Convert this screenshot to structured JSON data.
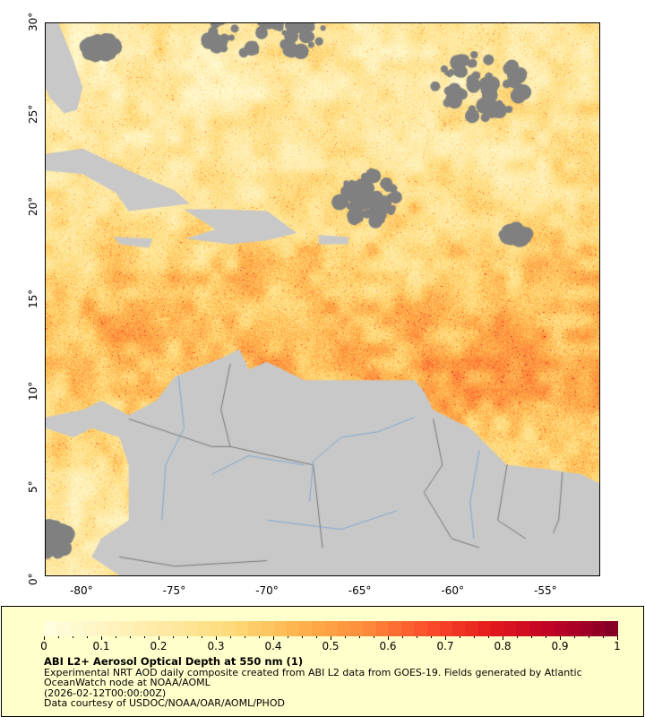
{
  "map": {
    "lon_range": [
      -82,
      -52
    ],
    "lat_range": [
      0,
      30
    ],
    "lon_ticks": [
      "-80°",
      "-75°",
      "-70°",
      "-65°",
      "-60°",
      "-55°"
    ],
    "lat_ticks": [
      "0°",
      "5°",
      "10°",
      "15°",
      "20°",
      "25°",
      "30°"
    ],
    "colors": {
      "land": "#c8c8c8",
      "no_data": "#808080",
      "rivers": "#6fa0d6",
      "borders": "#555555"
    }
  },
  "legend": {
    "colorscale": [
      "#ffffe0",
      "#fff3c0",
      "#fee8a0",
      "#fed976",
      "#feb24c",
      "#fd8d3c",
      "#fc4e2a",
      "#e31a1c",
      "#bd0026",
      "#800026"
    ],
    "range": [
      0,
      1
    ],
    "tick_labels": [
      "0",
      "0.1",
      "0.2",
      "0.3",
      "0.4",
      "0.5",
      "0.6",
      "0.7",
      "0.8",
      "0.9",
      "1"
    ],
    "title": "ABI L2+ Aerosol Optical Depth at 550 nm (1)",
    "line1": "Experimental NRT AOD daily composite created from ABI L2 data from GOES-19. Fields generated by Atlantic",
    "line2": "OceanWatch node at NOAA/AOML",
    "line3": "(2026-02-12T00:00:00Z)",
    "line4": "Data courtesy of USDOC/NOAA/OAR/AOML/PHOD"
  }
}
